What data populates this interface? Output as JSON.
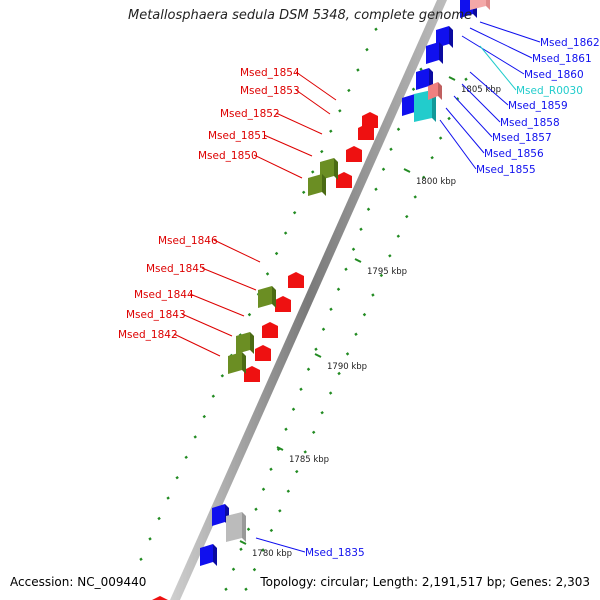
{
  "title": "Metallosphaera sedula DSM 5348, complete genome",
  "footer": {
    "accession": "Accession: NC_009440",
    "summary": "Topology: circular; Length: 2,191,517 bp; Genes: 2,303"
  },
  "colors": {
    "forward_gene": "#ee1111",
    "forward_gene_alt": "#6b8e23",
    "reverse_gene": "#1010ee",
    "rna_gene": "#22cccc",
    "pseudo": "#bbbbbb",
    "backbone": "#888888",
    "tick": "#228b22"
  },
  "ticks": [
    {
      "label": "1780 kbp"
    },
    {
      "label": "1785 kbp"
    },
    {
      "label": "1790 kbp"
    },
    {
      "label": "1795 kbp"
    },
    {
      "label": "1800 kbp"
    },
    {
      "label": "1805 kbp"
    }
  ],
  "left_labels": [
    {
      "text": "Msed_1854"
    },
    {
      "text": "Msed_1853"
    },
    {
      "text": "Msed_1852"
    },
    {
      "text": "Msed_1851"
    },
    {
      "text": "Msed_1850"
    },
    {
      "text": "Msed_1846"
    },
    {
      "text": "Msed_1845"
    },
    {
      "text": "Msed_1844"
    },
    {
      "text": "Msed_1843"
    },
    {
      "text": "Msed_1842"
    }
  ],
  "right_labels": [
    {
      "text": "Msed_1862"
    },
    {
      "text": "Msed_1861"
    },
    {
      "text": "Msed_1860"
    },
    {
      "text": "Msed_R0030"
    },
    {
      "text": "Msed_1859"
    },
    {
      "text": "Msed_1858"
    },
    {
      "text": "Msed_1857"
    },
    {
      "text": "Msed_1856"
    },
    {
      "text": "Msed_1855"
    },
    {
      "text": "Msed_1835"
    }
  ]
}
